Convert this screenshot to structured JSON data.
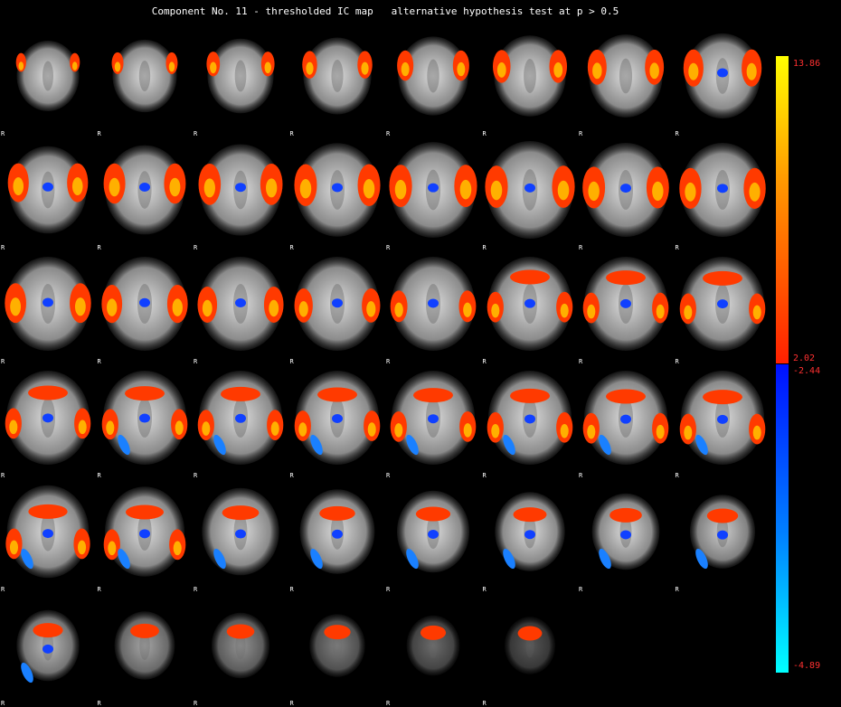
{
  "header": {
    "title": "Component No. 11 - thresholded IC map   alternative hypothesis test at p > 0.5"
  },
  "orientation_label": "R",
  "colorbar": {
    "pos_max": "13.86",
    "pos_min": "2.02",
    "neg_min": "-2.44",
    "neg_max": "-4.89",
    "colors": {
      "pos_top": "#ffff00",
      "pos_bottom": "#ff2000",
      "neg_top": "#0010ff",
      "neg_bottom": "#00ffff",
      "label": "#ff3030"
    }
  },
  "slices": {
    "rows": 6,
    "cols": 8,
    "count": 46
  }
}
